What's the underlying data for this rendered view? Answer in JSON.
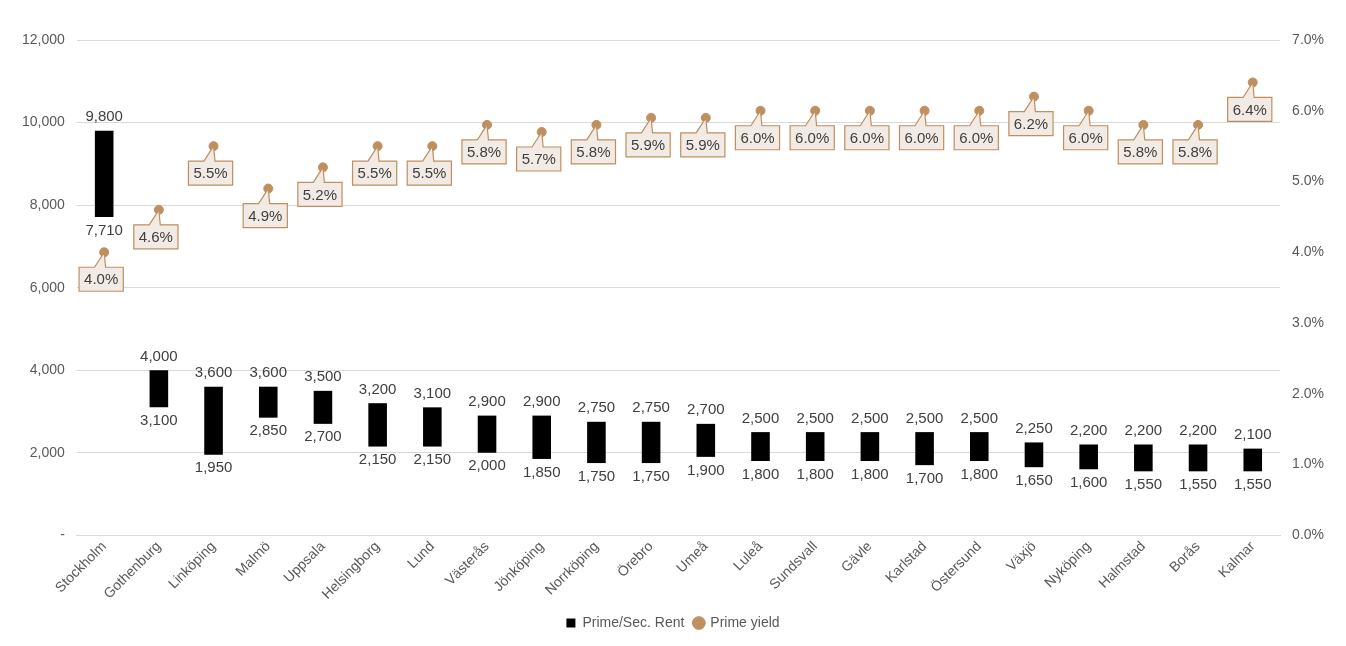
{
  "chart_data": {
    "type": "bar",
    "categories": [
      "Stockholm",
      "Gothenburg",
      "Linköping",
      "Malmö",
      "Uppsala",
      "Helsingborg",
      "Lund",
      "Västerås",
      "Jönköping",
      "Norrköping",
      "Örebro",
      "Umeå",
      "Luleå",
      "Sundsvall",
      "Gävle",
      "Karlstad",
      "Östersund",
      "Växjö",
      "Nyköping",
      "Halmstad",
      "Borås",
      "Kalmar"
    ],
    "series": [
      {
        "name": "Prime/Sec. Rent",
        "color": "#000000",
        "base": [
          7710,
          3100,
          1950,
          2850,
          2700,
          2150,
          2150,
          2000,
          1850,
          1750,
          1750,
          1900,
          1800,
          1800,
          1800,
          1700,
          1800,
          1650,
          1600,
          1550,
          1550,
          1550
        ],
        "values": [
          2090,
          900,
          1650,
          750,
          800,
          1050,
          950,
          900,
          1050,
          1000,
          1000,
          800,
          700,
          700,
          700,
          800,
          700,
          600,
          600,
          650,
          650,
          550
        ]
      },
      {
        "name": "Prime yield",
        "type": "scatter",
        "axis": "y2",
        "color": "#bf8f5f",
        "marker": "circle",
        "values": [
          4.0,
          4.6,
          5.5,
          4.9,
          5.2,
          5.5,
          5.5,
          5.8,
          5.7,
          5.8,
          5.9,
          5.9,
          6.0,
          6.0,
          6.0,
          6.0,
          6.0,
          6.2,
          6.0,
          5.8,
          5.8,
          6.4
        ],
        "value_labels": [
          "4.0%",
          "4.6%",
          "5.5%",
          "4.9%",
          "5.2%",
          "5.5%",
          "5.5%",
          "5.8%",
          "5.7%",
          "5.8%",
          "5.9%",
          "5.9%",
          "6.0%",
          "6.0%",
          "6.0%",
          "6.0%",
          "6.0%",
          "6.2%",
          "6.0%",
          "5.8%",
          "5.8%",
          "6.4%"
        ]
      }
    ],
    "annotations": [
      {
        "text": "9,800",
        "x": "Stockholm",
        "y": 9800
      },
      {
        "text": "7,710",
        "x": "Stockholm",
        "y": 7710
      },
      {
        "text": "4,000",
        "x": "Gothenburg",
        "y": 4000
      },
      {
        "text": "3,100",
        "x": "Gothenburg",
        "y": 3100
      },
      {
        "text": "3,600",
        "x": "Linköping",
        "y": 3600
      },
      {
        "text": "1,950",
        "x": "Linköping",
        "y": 1950
      },
      {
        "text": "3,600",
        "x": "Malmö",
        "y": 3600
      },
      {
        "text": "2,850",
        "x": "Malmö",
        "y": 2850
      },
      {
        "text": "3,500",
        "x": "Uppsala",
        "y": 3500
      },
      {
        "text": "2,700",
        "x": "Uppsala",
        "y": 2700
      },
      {
        "text": "3,200",
        "x": "Helsingborg",
        "y": 3200
      },
      {
        "text": "2,150",
        "x": "Helsingborg",
        "y": 2150
      },
      {
        "text": "3,100",
        "x": "Lund",
        "y": 3100
      },
      {
        "text": "2,150",
        "x": "Lund",
        "y": 2150
      },
      {
        "text": "2,900",
        "x": "Västerås",
        "y": 2900
      },
      {
        "text": "2,000",
        "x": "Västerås",
        "y": 2000
      },
      {
        "text": "2,900",
        "x": "Jönköping",
        "y": 2900
      },
      {
        "text": "1,850",
        "x": "Jönköping",
        "y": 1850
      },
      {
        "text": "2,750",
        "x": "Norrköping",
        "y": 2750
      },
      {
        "text": "1,750",
        "x": "Norrköping",
        "y": 1750
      },
      {
        "text": "2,750",
        "x": "Örebro",
        "y": 2750
      },
      {
        "text": "1,750",
        "x": "Örebro",
        "y": 1750
      },
      {
        "text": "2,700",
        "x": "Umeå",
        "y": 2700
      },
      {
        "text": "1,900",
        "x": "Umeå",
        "y": 1900
      },
      {
        "text": "2,500",
        "x": "Luleå",
        "y": 2500
      },
      {
        "text": "1,800",
        "x": "Luleå",
        "y": 1800
      },
      {
        "text": "2,500",
        "x": "Sundsvall",
        "y": 2500
      },
      {
        "text": "1,800",
        "x": "Sundsvall",
        "y": 1800
      },
      {
        "text": "2,500",
        "x": "Gävle",
        "y": 2500
      },
      {
        "text": "1,800",
        "x": "Gävle",
        "y": 1800
      },
      {
        "text": "2,500",
        "x": "Karlstad",
        "y": 2500
      },
      {
        "text": "1,700",
        "x": "Karlstad",
        "y": 1700
      },
      {
        "text": "2,500",
        "x": "Östersund",
        "y": 2500
      },
      {
        "text": "1,800",
        "x": "Östersund",
        "y": 1800
      },
      {
        "text": "2,250",
        "x": "Växjö",
        "y": 2250
      },
      {
        "text": "1,650",
        "x": "Växjö",
        "y": 1650
      },
      {
        "text": "2,200",
        "x": "Nyköping",
        "y": 2200
      },
      {
        "text": "1,600",
        "x": "Nyköping",
        "y": 1600
      },
      {
        "text": "2,200",
        "x": "Halmstad",
        "y": 2200
      },
      {
        "text": "1,550",
        "x": "Halmstad",
        "y": 1550
      },
      {
        "text": "2,200",
        "x": "Borås",
        "y": 2200
      },
      {
        "text": "1,550",
        "x": "Borås",
        "y": 1550
      },
      {
        "text": "2,100",
        "x": "Kalmar",
        "y": 2100
      },
      {
        "text": "1,550",
        "x": "Kalmar",
        "y": 1550
      }
    ],
    "ylim": [
      0,
      12000
    ],
    "yticks": [
      {
        "value": 0,
        "label": "-"
      },
      {
        "value": 2000,
        "label": "2,000"
      },
      {
        "value": 4000,
        "label": "4,000"
      },
      {
        "value": 6000,
        "label": "6,000"
      },
      {
        "value": 8000,
        "label": "8,000"
      },
      {
        "value": 10000,
        "label": "10,000"
      },
      {
        "value": 12000,
        "label": "12,000"
      }
    ],
    "y2lim": [
      0,
      7
    ],
    "y2ticks": [
      {
        "value": 0,
        "label": "0.0%"
      },
      {
        "value": 1,
        "label": "1.0%"
      },
      {
        "value": 2,
        "label": "2.0%"
      },
      {
        "value": 3,
        "label": "3.0%"
      },
      {
        "value": 4,
        "label": "4.0%"
      },
      {
        "value": 5,
        "label": "5.0%"
      },
      {
        "value": 6,
        "label": "6.0%"
      },
      {
        "value": 7,
        "label": "7.0%"
      }
    ],
    "grid": "y",
    "legend": "bottom"
  }
}
